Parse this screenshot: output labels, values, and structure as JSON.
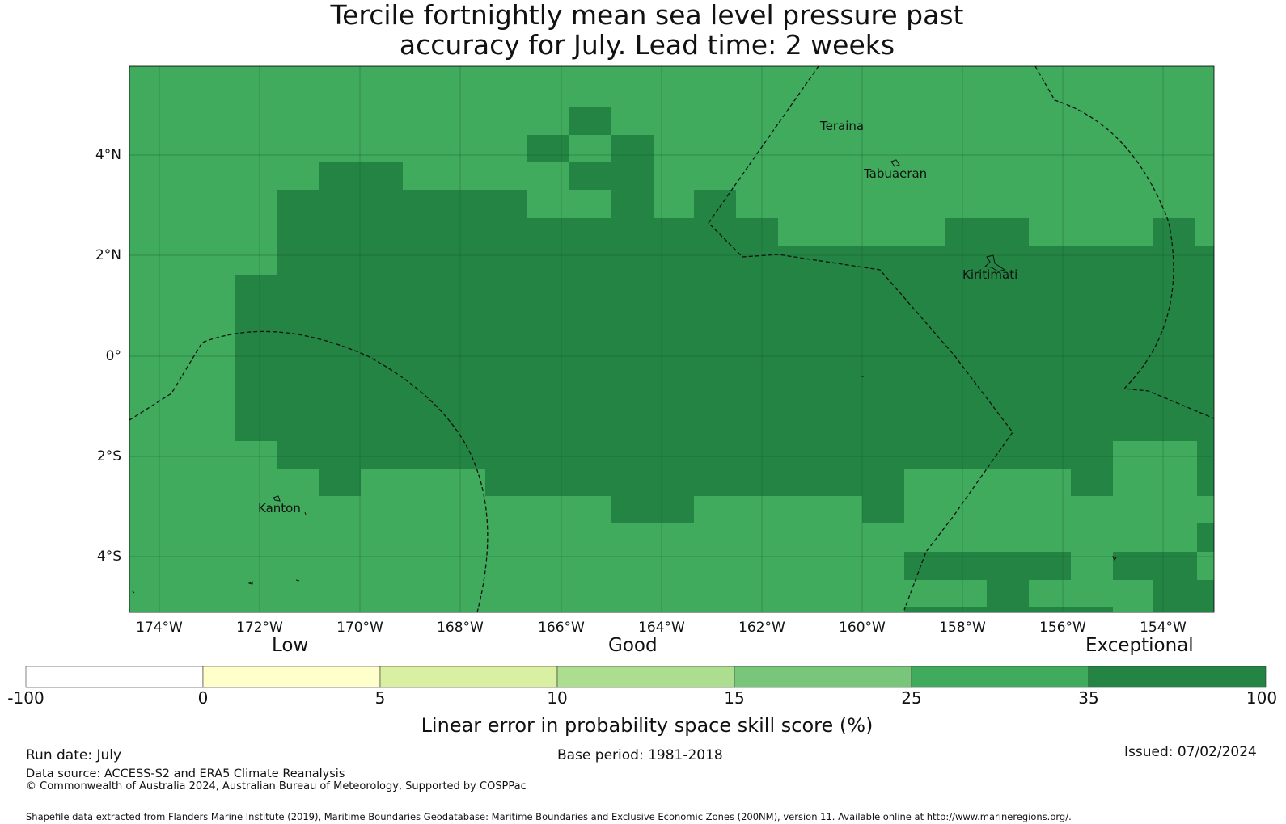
{
  "title": {
    "line1": "Tercile fortnightly mean sea level pressure past",
    "line2": "accuracy for July. Lead time: 2 weeks"
  },
  "map": {
    "lat_ticks": [
      "4°N",
      "2°N",
      "0°",
      "2°S",
      "4°S"
    ],
    "lon_ticks": [
      "174°W",
      "172°W",
      "170°W",
      "168°W",
      "166°W",
      "164°W",
      "162°W",
      "160°W",
      "158°W",
      "156°W",
      "154°W"
    ],
    "extent": {
      "lon_min": -174.6,
      "lon_max": -153.0,
      "lat_min": -5.1,
      "lat_max": 5.8
    },
    "places": [
      "Teraina",
      "Tabuaeran",
      "Kiritimati",
      "Kanton"
    ],
    "colors": {
      "good_cell": "#41ab5d",
      "exceptional_cell": "#238443",
      "gridline": "#1c5a2f",
      "eez_line": "#111111"
    }
  },
  "colorbar": {
    "categories": [
      "Low",
      "Good",
      "Exceptional"
    ],
    "boundaries": [
      "-100",
      "0",
      "5",
      "10",
      "15",
      "25",
      "35",
      "100"
    ],
    "colors": [
      "#ffffff",
      "#ffffcc",
      "#d9f0a3",
      "#addd8e",
      "#78c679",
      "#41ab5d",
      "#238443"
    ],
    "label": "Linear error in probability space skill score (%)"
  },
  "footer": {
    "run_date": "Run date: July",
    "base_period": "Base period: 1981-2018",
    "issued": "Issued: 07/02/2024",
    "data_source": "Data source: ACCESS-S2 and ERA5 Climate Reanalysis",
    "copyright": "© Commonwealth of Australia 2024, Australian Bureau of Meteorology, Supported by COSPPac",
    "shapefile": "Shapefile data extracted from Flanders Marine Institute (2019), Maritime Boundaries Geodatabase: Maritime Boundaries and Exclusive Economic Zones (200NM), version 11. Available online at http://www.marineregions.org/."
  }
}
